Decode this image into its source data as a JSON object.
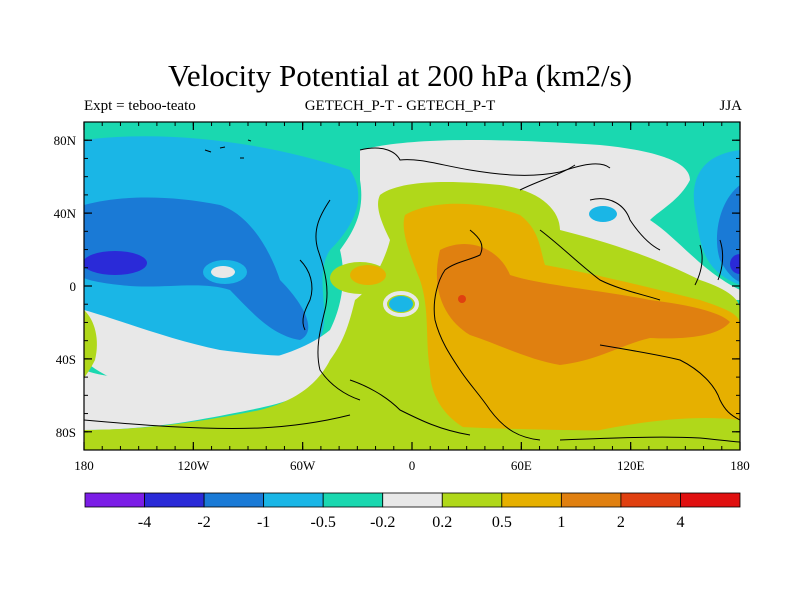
{
  "title": "Velocity Potential at 200 hPa (km2/s)",
  "subtitle_left": "Expt = teboo-teato",
  "subtitle_center": "GETECH_P-T - GETECH_P-T",
  "subtitle_right": "JJA",
  "map": {
    "projection": "cylindrical-equidistant",
    "lon_range": [
      -180,
      180
    ],
    "lat_range": [
      -90,
      90
    ],
    "lat_ticks": [
      {
        "value": 80,
        "label": "80N"
      },
      {
        "value": 40,
        "label": "40N"
      },
      {
        "value": 0,
        "label": "0"
      },
      {
        "value": -40,
        "label": "40S"
      },
      {
        "value": -80,
        "label": "80S"
      }
    ],
    "lon_ticks": [
      {
        "value": -180,
        "label": "180"
      },
      {
        "value": -120,
        "label": "120W"
      },
      {
        "value": -60,
        "label": "60W"
      },
      {
        "value": 0,
        "label": "0"
      },
      {
        "value": 60,
        "label": "60E"
      },
      {
        "value": 120,
        "label": "120E"
      },
      {
        "value": 180,
        "label": "180"
      }
    ]
  },
  "colorbar": {
    "colors": [
      "#7b1de6",
      "#2a2ad8",
      "#1a7ad6",
      "#1ab6e6",
      "#1ad8b0",
      "#e8e8e8",
      "#b0d81a",
      "#e6b000",
      "#e08010",
      "#e04010",
      "#e01010"
    ],
    "labels": [
      "-4",
      "-2",
      "-1",
      "-0.5",
      "-0.2",
      "0.2",
      "0.5",
      "1",
      "2",
      "4"
    ]
  }
}
